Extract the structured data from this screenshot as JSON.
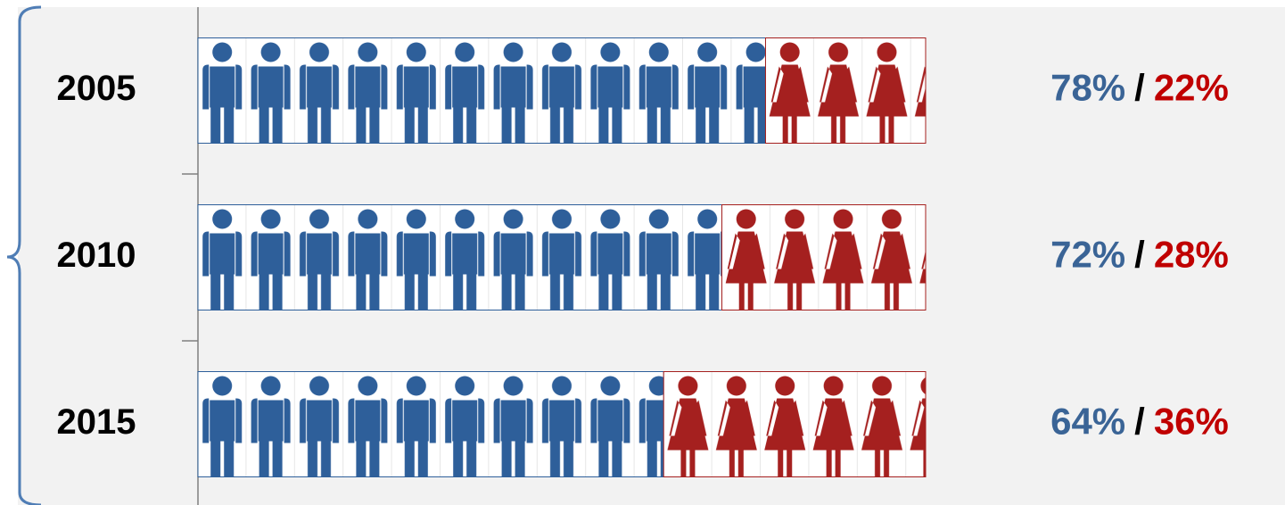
{
  "chart_data": {
    "type": "bar",
    "orientation": "horizontal",
    "stacked": true,
    "categories": [
      "2005",
      "2010",
      "2015"
    ],
    "series": [
      {
        "color": "#2e5f9a",
        "label_color": "#3a6496",
        "values": [
          78,
          72,
          64
        ],
        "value_labels": [
          "78%",
          "72%",
          "64%"
        ],
        "icon": "man"
      },
      {
        "color": "#a5201f",
        "label_color": "#c00000",
        "values": [
          22,
          28,
          36
        ],
        "value_labels": [
          "22%",
          "28%",
          "36%"
        ],
        "icon": "woman"
      }
    ],
    "separator": "/",
    "xlim": [
      0,
      100
    ]
  }
}
